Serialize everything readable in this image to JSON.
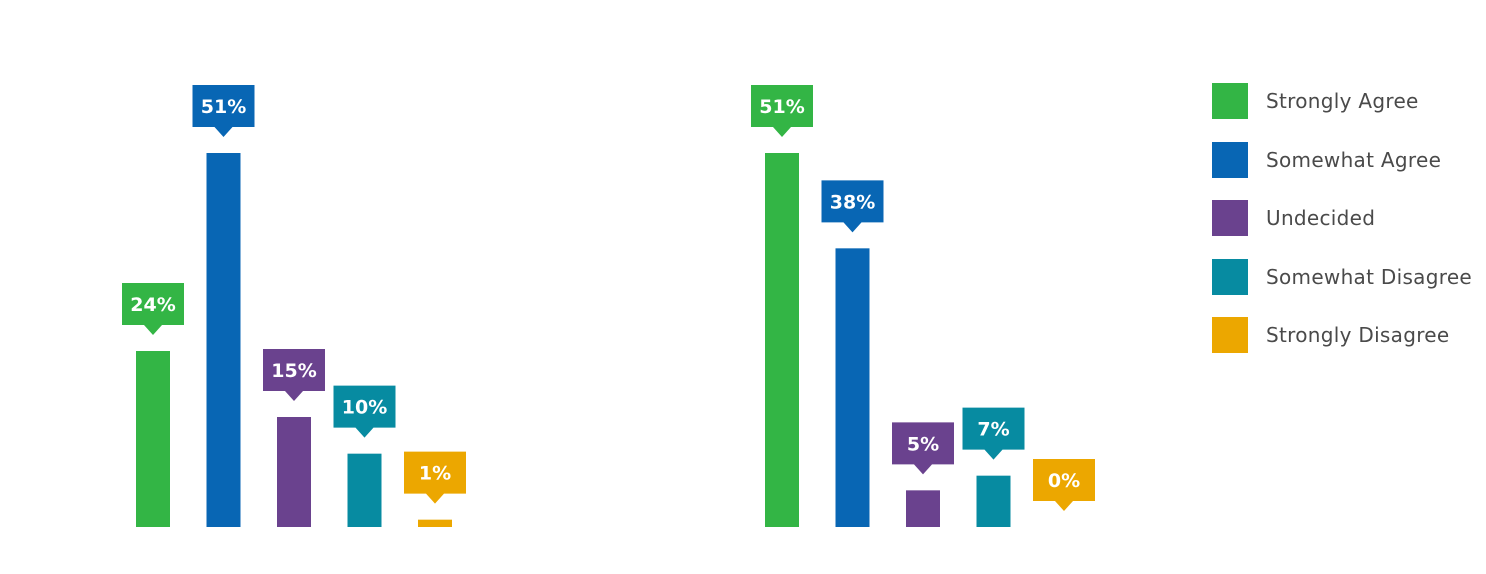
{
  "chart_data": [
    {
      "type": "bar",
      "categories": [
        "Strongly Agree",
        "Somewhat Agree",
        "Undecided",
        "Somewhat Disagree",
        "Strongly Disagree"
      ],
      "values": [
        24,
        51,
        15,
        10,
        1
      ],
      "value_labels": [
        "24%",
        "51%",
        "15%",
        "10%",
        "1%"
      ],
      "ylim": [
        0,
        51
      ]
    },
    {
      "type": "bar",
      "categories": [
        "Strongly Agree",
        "Somewhat Agree",
        "Undecided",
        "Somewhat Disagree",
        "Strongly Disagree"
      ],
      "values": [
        51,
        38,
        5,
        7,
        0
      ],
      "value_labels": [
        "51%",
        "38%",
        "5%",
        "7%",
        "0%"
      ],
      "ylim": [
        0,
        51
      ]
    }
  ],
  "legend": {
    "placement": "right",
    "items": [
      {
        "label": "Strongly Agree",
        "color": "#33b545"
      },
      {
        "label": "Somewhat Agree",
        "color": "#0866b4"
      },
      {
        "label": "Undecided",
        "color": "#6a428e"
      },
      {
        "label": "Somewhat Disagree",
        "color": "#078ba1"
      },
      {
        "label": "Strongly Disagree",
        "color": "#eca700"
      }
    ]
  }
}
